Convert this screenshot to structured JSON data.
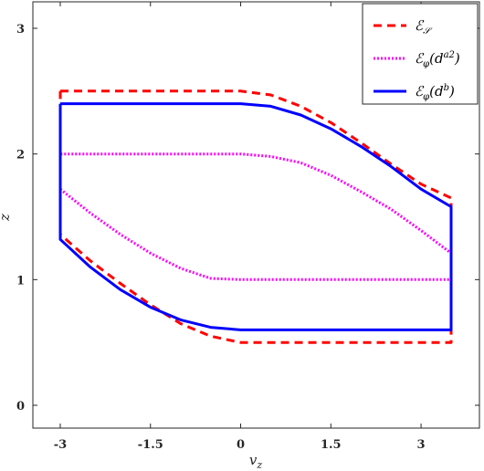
{
  "chart_data": {
    "type": "line",
    "title": "",
    "xlabel": "v_z",
    "ylabel": "z",
    "xlim": [
      -3.5,
      4.5
    ],
    "ylim": [
      -0.2,
      3.2
    ],
    "xticks": [
      -3,
      -1.5,
      0,
      1.5,
      3
    ],
    "xtick_labels": [
      "-3",
      "-1.5",
      "0",
      "1.5",
      "3"
    ],
    "yticks": [
      0,
      1,
      2,
      3
    ],
    "ytick_labels": [
      "0",
      "1",
      "2",
      "3"
    ],
    "grid": false,
    "legend_position": "top-right",
    "series": [
      {
        "name": "E_S",
        "legend_main": "ℰ",
        "legend_sub": "𝒮",
        "legend_sup": "",
        "legend_suffix": "",
        "color": "#ff0000",
        "style": "dashed",
        "x": [
          -3,
          0,
          0.5,
          1.0,
          1.5,
          2.0,
          2.5,
          3.0,
          3.5,
          3.5,
          3.5,
          3.0,
          2.5,
          2.0,
          1.5,
          1.0,
          0.5,
          0.0,
          -0.5,
          -1.0,
          -1.5,
          -2.0,
          -2.5,
          -3.0,
          -3.0
        ],
        "y": [
          2.5,
          2.5,
          2.47,
          2.38,
          2.25,
          2.09,
          1.92,
          1.76,
          1.65,
          1.65,
          0.5,
          0.5,
          0.5,
          0.5,
          0.5,
          0.5,
          0.5,
          0.5,
          0.55,
          0.65,
          0.8,
          0.97,
          1.15,
          1.36,
          2.5
        ]
      },
      {
        "name": "E_phi(d^a2)",
        "legend_main": "ℰ",
        "legend_sub": "φ",
        "legend_sup": "a2",
        "legend_suffix": "",
        "color": "#ff00ff",
        "style": "dotted",
        "x": [
          -3.0,
          -2.5,
          -2.0,
          -1.5,
          -1.0,
          -0.5,
          0.0,
          3.5,
          3.5,
          3.0,
          2.5,
          2.0,
          1.5,
          1.0,
          0.5,
          0.0,
          -3.0,
          -3.0
        ],
        "y": [
          1.72,
          1.53,
          1.36,
          1.21,
          1.09,
          1.01,
          1.0,
          1.0,
          1.21,
          1.39,
          1.56,
          1.7,
          1.83,
          1.93,
          1.98,
          2.0,
          2.0,
          1.72
        ]
      },
      {
        "name": "E_phi(d^b)",
        "legend_main": "ℰ",
        "legend_sub": "φ",
        "legend_sup": "b",
        "legend_suffix": "",
        "color": "#0000ff",
        "style": "solid",
        "x": [
          -3.0,
          0.0,
          0.5,
          1.0,
          1.5,
          2.0,
          2.5,
          3.0,
          3.5,
          3.5,
          0.0,
          -0.5,
          -1.0,
          -1.5,
          -2.0,
          -2.5,
          -3.0,
          -3.0
        ],
        "y": [
          2.4,
          2.4,
          2.38,
          2.31,
          2.2,
          2.06,
          1.9,
          1.72,
          1.58,
          0.6,
          0.6,
          0.62,
          0.68,
          0.78,
          0.92,
          1.1,
          1.32,
          2.4
        ]
      }
    ]
  }
}
